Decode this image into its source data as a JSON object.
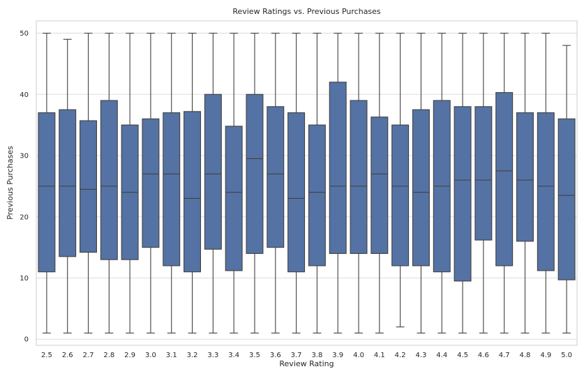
{
  "chart_data": {
    "type": "box",
    "title": "Review Ratings vs. Previous Purchases",
    "xlabel": "Review Rating",
    "ylabel": "Previous Purchases",
    "ylim": [
      -1,
      52
    ],
    "yticks": [
      "0",
      "10",
      "20",
      "30",
      "40",
      "50"
    ],
    "grid": true,
    "color": "#5572a4",
    "line_color": "#404040",
    "categories": [
      "2.5",
      "2.6",
      "2.7",
      "2.8",
      "2.9",
      "3.0",
      "3.1",
      "3.2",
      "3.3",
      "3.4",
      "3.5",
      "3.6",
      "3.7",
      "3.8",
      "3.9",
      "4.0",
      "4.1",
      "4.2",
      "4.3",
      "4.4",
      "4.5",
      "4.6",
      "4.7",
      "4.8",
      "4.9",
      "5.0"
    ],
    "boxes": [
      {
        "min": 1,
        "q1": 11,
        "median": 25,
        "q3": 37,
        "max": 50
      },
      {
        "min": 1,
        "q1": 13.5,
        "median": 25,
        "q3": 37.5,
        "max": 49
      },
      {
        "min": 1,
        "q1": 14.2,
        "median": 24.5,
        "q3": 35.7,
        "max": 50
      },
      {
        "min": 1,
        "q1": 13,
        "median": 25,
        "q3": 39,
        "max": 50
      },
      {
        "min": 1,
        "q1": 13,
        "median": 24,
        "q3": 35,
        "max": 50
      },
      {
        "min": 1,
        "q1": 15,
        "median": 27,
        "q3": 36,
        "max": 50
      },
      {
        "min": 1,
        "q1": 12,
        "median": 27,
        "q3": 37,
        "max": 50
      },
      {
        "min": 1,
        "q1": 11,
        "median": 23,
        "q3": 37.2,
        "max": 50
      },
      {
        "min": 1,
        "q1": 14.7,
        "median": 27,
        "q3": 40,
        "max": 50
      },
      {
        "min": 1,
        "q1": 11.2,
        "median": 24,
        "q3": 34.8,
        "max": 50
      },
      {
        "min": 1,
        "q1": 14,
        "median": 29.5,
        "q3": 40,
        "max": 50
      },
      {
        "min": 1,
        "q1": 15,
        "median": 27,
        "q3": 38,
        "max": 50
      },
      {
        "min": 1,
        "q1": 11,
        "median": 23,
        "q3": 37,
        "max": 50
      },
      {
        "min": 1,
        "q1": 12,
        "median": 24,
        "q3": 35,
        "max": 50
      },
      {
        "min": 1,
        "q1": 14,
        "median": 25,
        "q3": 42,
        "max": 50
      },
      {
        "min": 1,
        "q1": 14,
        "median": 25,
        "q3": 39,
        "max": 50
      },
      {
        "min": 1,
        "q1": 14,
        "median": 27,
        "q3": 36.3,
        "max": 50
      },
      {
        "min": 2,
        "q1": 12,
        "median": 25,
        "q3": 35,
        "max": 50
      },
      {
        "min": 1,
        "q1": 12,
        "median": 24,
        "q3": 37.5,
        "max": 50
      },
      {
        "min": 1,
        "q1": 11,
        "median": 25,
        "q3": 39,
        "max": 50
      },
      {
        "min": 1,
        "q1": 9.5,
        "median": 26,
        "q3": 38,
        "max": 50
      },
      {
        "min": 1,
        "q1": 16.2,
        "median": 26,
        "q3": 38,
        "max": 50
      },
      {
        "min": 1,
        "q1": 12,
        "median": 27.5,
        "q3": 40.3,
        "max": 50
      },
      {
        "min": 1,
        "q1": 16,
        "median": 26,
        "q3": 37,
        "max": 50
      },
      {
        "min": 1,
        "q1": 11.2,
        "median": 25,
        "q3": 37,
        "max": 50
      },
      {
        "min": 1,
        "q1": 9.7,
        "median": 23.5,
        "q3": 36,
        "max": 48
      }
    ]
  }
}
